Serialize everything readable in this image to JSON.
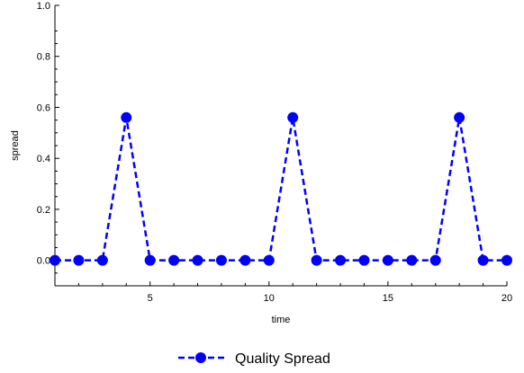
{
  "chart_data": {
    "type": "line",
    "title": "",
    "xlabel": "time",
    "ylabel": "spread",
    "xlim": [
      1,
      20
    ],
    "ylim": [
      -0.1,
      1.0
    ],
    "x_ticks": [
      {
        "value": 5,
        "label": "5"
      },
      {
        "value": 10,
        "label": "10"
      },
      {
        "value": 15,
        "label": "15"
      },
      {
        "value": 20,
        "label": "20"
      }
    ],
    "y_ticks": [
      {
        "value": 0.0,
        "label": "0.0"
      },
      {
        "value": 0.2,
        "label": "0.2"
      },
      {
        "value": 0.4,
        "label": "0.4"
      },
      {
        "value": 0.6,
        "label": "0.6"
      },
      {
        "value": 0.8,
        "label": "0.8"
      },
      {
        "value": 1.0,
        "label": "1.0"
      }
    ],
    "grid": false,
    "legend_position": "bottom-center",
    "series": [
      {
        "name": "Quality Spread",
        "color": "#0000ff",
        "line_style": "dashed",
        "marker": "circle",
        "x": [
          1,
          2,
          3,
          4,
          5,
          6,
          7,
          8,
          9,
          10,
          11,
          12,
          13,
          14,
          15,
          16,
          17,
          18,
          19,
          20
        ],
        "y": [
          0,
          0,
          0,
          0.56,
          0,
          0,
          0,
          0,
          0,
          0,
          0.56,
          0,
          0,
          0,
          0,
          0,
          0,
          0.56,
          0,
          0
        ]
      }
    ]
  }
}
